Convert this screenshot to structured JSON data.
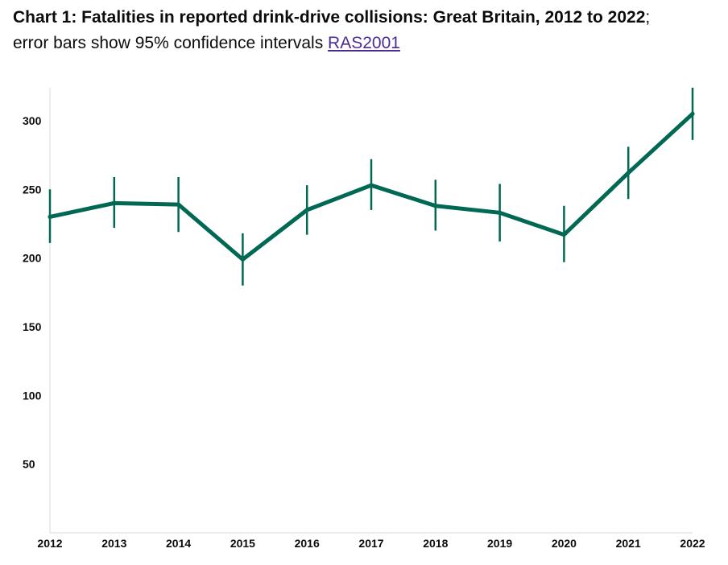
{
  "header": {
    "title": "Chart 1: Fatalities in reported drink-drive collisions: Great Britain, 2012 to 2022",
    "separator": ";",
    "subtitle": "error bars show 95% confidence intervals",
    "link_text": "RAS2001"
  },
  "colors": {
    "line": "#006853",
    "axis": "#d9d9d9",
    "link": "#4c2c92",
    "text": "#0b0c0c"
  },
  "chart_data": {
    "type": "line",
    "title": "Chart 1: Fatalities in reported drink-drive collisions: Great Britain, 2012 to 2022",
    "xlabel": "",
    "ylabel": "",
    "x": [
      "2012",
      "2013",
      "2014",
      "2015",
      "2016",
      "2017",
      "2018",
      "2019",
      "2020",
      "2021",
      "2022"
    ],
    "series": [
      {
        "values": [
          230,
          240,
          239,
          199,
          235,
          253,
          238,
          233,
          217,
          262,
          305
        ],
        "ci_lower": [
          211,
          222,
          219,
          180,
          217,
          235,
          220,
          212,
          197,
          243,
          286
        ],
        "ci_upper": [
          250,
          259,
          259,
          218,
          253,
          272,
          257,
          254,
          238,
          281,
          324
        ]
      }
    ],
    "yticks": [
      50,
      100,
      150,
      200,
      250,
      300
    ],
    "ylim": [
      0,
      324
    ],
    "grid": false,
    "legend": "none"
  }
}
